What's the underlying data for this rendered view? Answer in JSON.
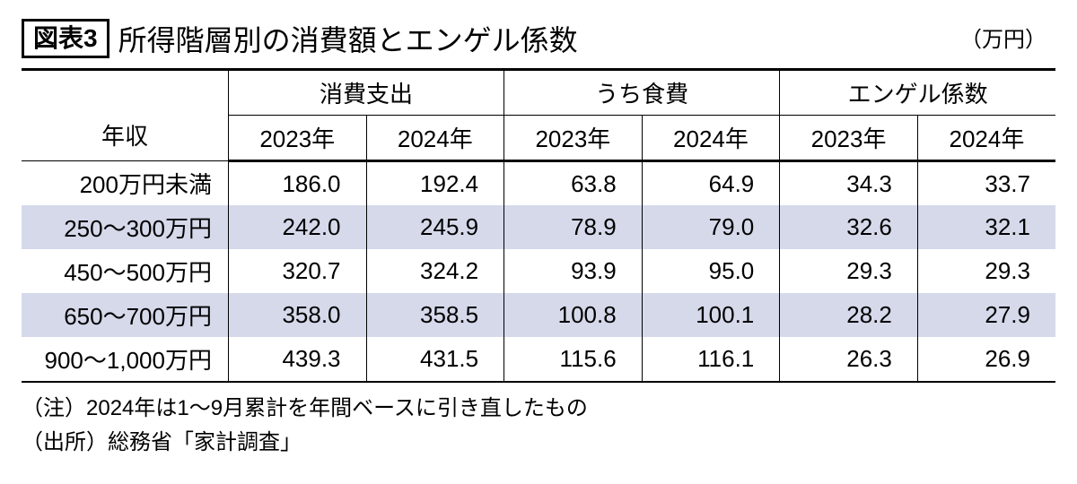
{
  "header": {
    "badge": "図表3",
    "title": "所得階層別の消費額とエンゲル係数",
    "unit": "（万円）"
  },
  "table": {
    "rowlabel_header": "年収",
    "groups": [
      "消費支出",
      "うち食費",
      "エンゲル係数"
    ],
    "years": [
      "2023年",
      "2024年"
    ],
    "col_widths": [
      "20%",
      "13.33%",
      "13.33%",
      "13.33%",
      "13.33%",
      "13.33%",
      "13.33%"
    ],
    "rows": [
      {
        "label": "200万円未満",
        "alt": false,
        "vals": [
          "186.0",
          "192.4",
          "63.8",
          "64.9",
          "34.3",
          "33.7"
        ]
      },
      {
        "label": "250～300万円",
        "alt": true,
        "vals": [
          "242.0",
          "245.9",
          "78.9",
          "79.0",
          "32.6",
          "32.1"
        ]
      },
      {
        "label": "450～500万円",
        "alt": false,
        "vals": [
          "320.7",
          "324.2",
          "93.9",
          "95.0",
          "29.3",
          "29.3"
        ]
      },
      {
        "label": "650～700万円",
        "alt": true,
        "vals": [
          "358.0",
          "358.5",
          "100.8",
          "100.1",
          "28.2",
          "27.9"
        ]
      },
      {
        "label": "900～1,000万円",
        "alt": false,
        "vals": [
          "439.3",
          "431.5",
          "115.6",
          "116.1",
          "26.3",
          "26.9"
        ]
      }
    ],
    "colors": {
      "alt_row_bg": "#d5d9ea",
      "border": "#000000"
    },
    "fontsize_cells": 26,
    "fontsize_title": 32
  },
  "notes": {
    "line1": "（注）2024年は1～9月累計を年間ベースに引き直したもの",
    "line2": "（出所）総務省「家計調査」"
  }
}
